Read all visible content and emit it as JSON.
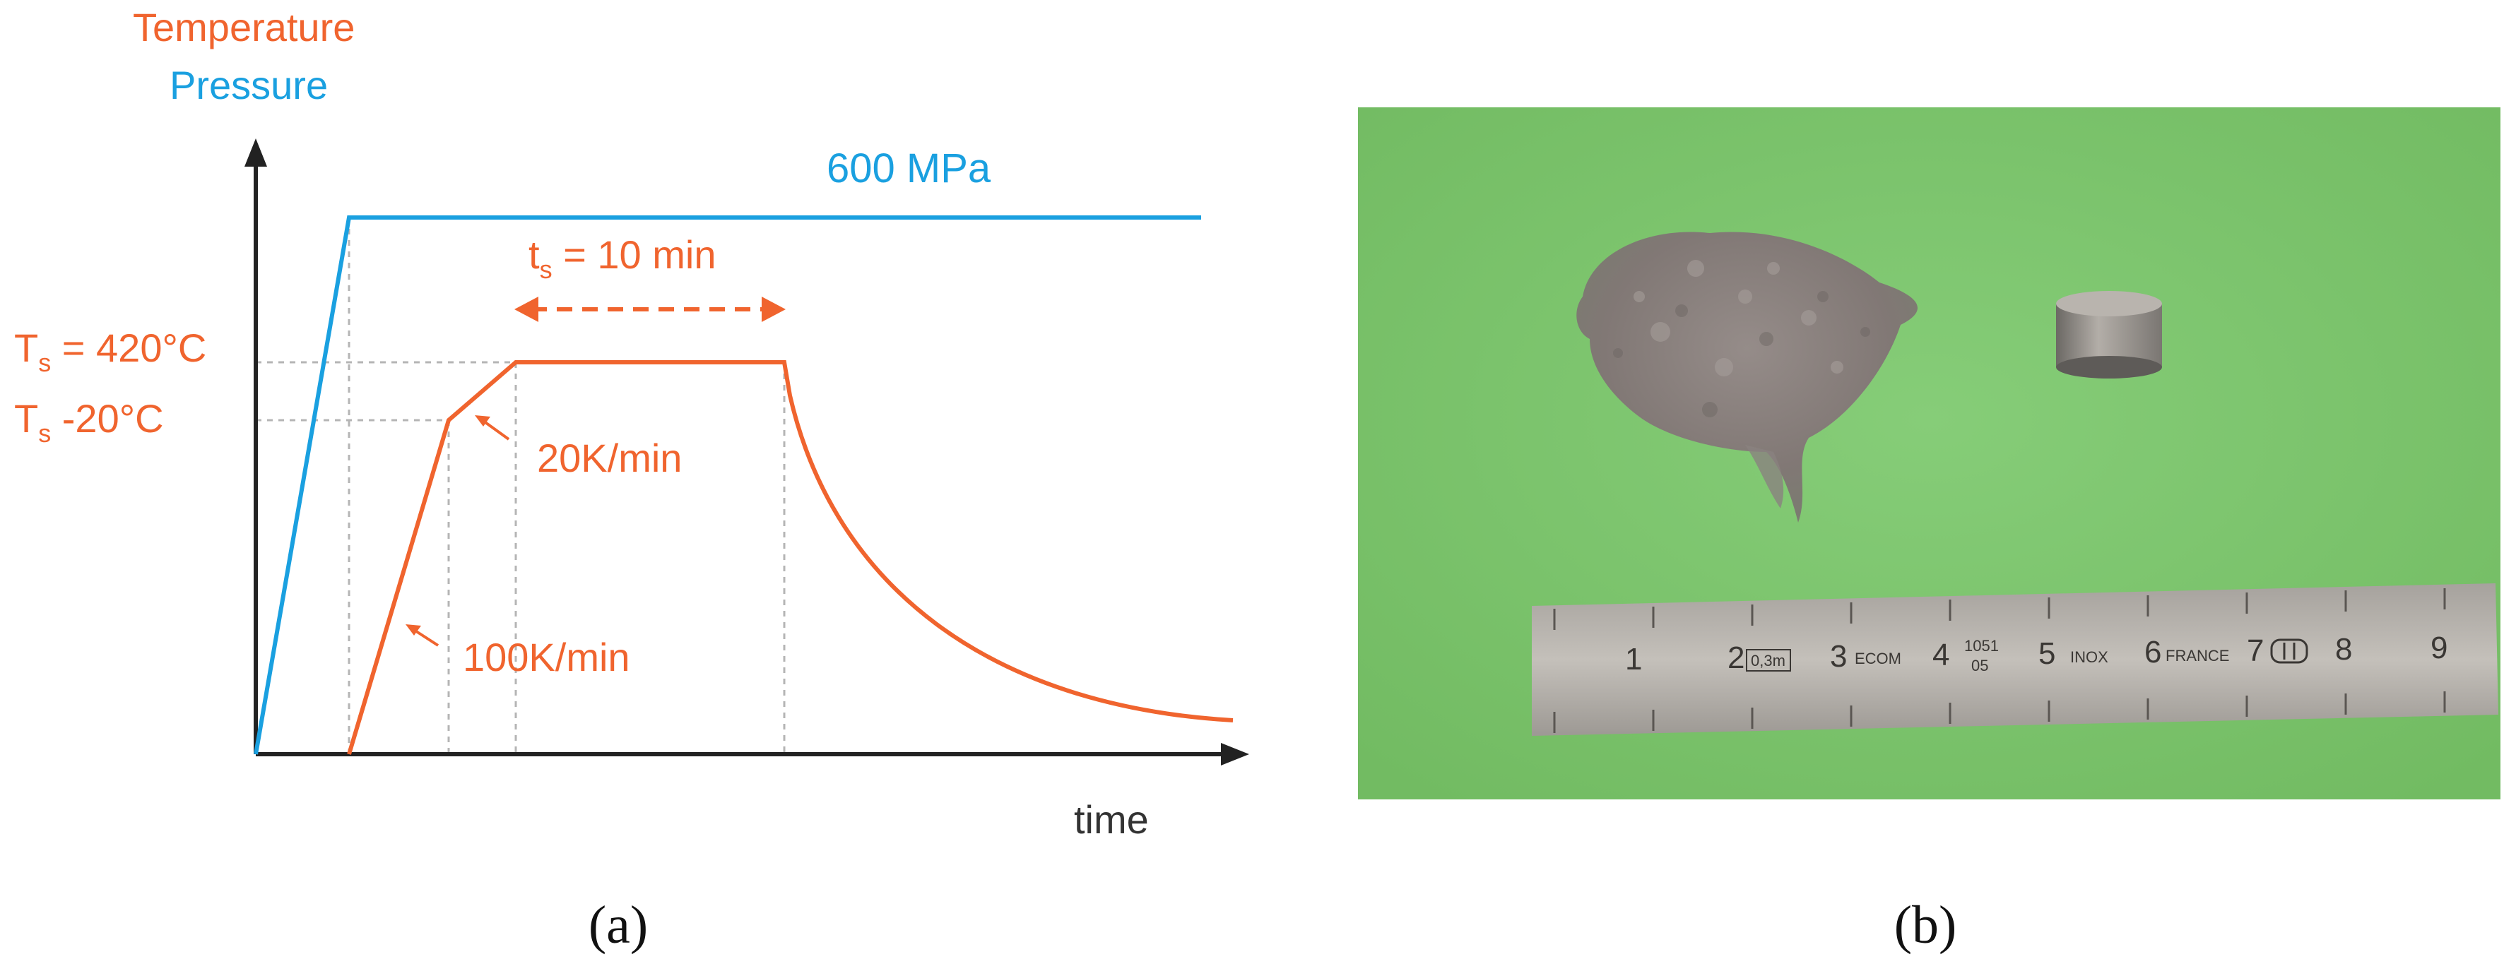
{
  "panel_a": {
    "legend": {
      "temperature": "Temperature",
      "pressure": "Pressure"
    },
    "pressure_label": "600 MPa",
    "hold_time": {
      "base": "t",
      "sub": "s",
      "rest": " = 10 min"
    },
    "ts_label": {
      "base": "T",
      "sub": "s",
      "rest": " = 420°C"
    },
    "ts_minus_label": {
      "base": "T",
      "sub": "s",
      "rest": " -20°C"
    },
    "rate_slow": "20K/min",
    "rate_fast": "100K/min",
    "x_axis_label": "time",
    "caption": "(a)",
    "colors": {
      "temperature": "#f0642e",
      "pressure": "#1aa0e0",
      "axis": "#222222",
      "guide": "#b0b0b0"
    }
  },
  "panel_b": {
    "caption": "(b)",
    "photo_objects": [
      "powder-pile",
      "sintered-pellet",
      "steel-ruler"
    ],
    "ruler": {
      "numbers": [
        "1",
        "2",
        "3",
        "4",
        "5",
        "6",
        "7",
        "8",
        "9"
      ],
      "marks": {
        "box": "0,3m",
        "text_a": "ECOM",
        "text_b": "1051",
        "text_c": "05",
        "inox": "INOX",
        "france": "FRANCE"
      }
    },
    "colors": {
      "background": "#7dc76e",
      "powder": "#857c7a",
      "pellet": "#a09a95",
      "ruler": "#b8b3ad"
    }
  }
}
